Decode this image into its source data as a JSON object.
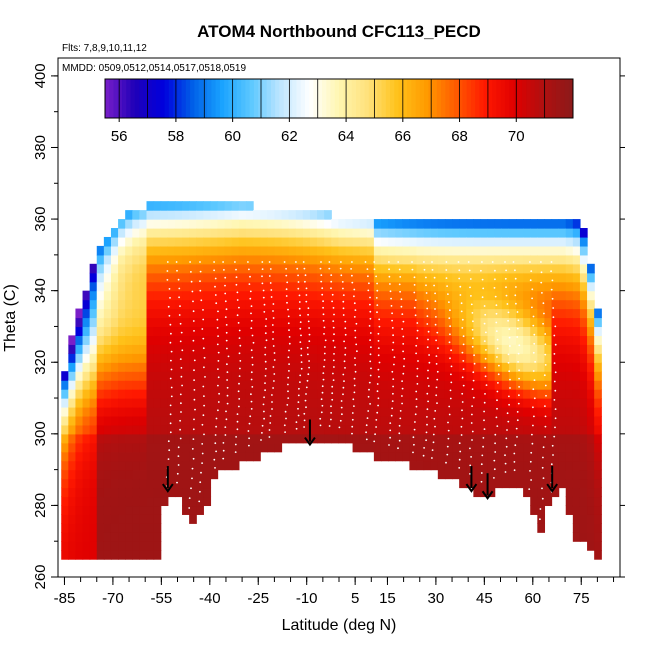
{
  "chart_data": {
    "type": "heatmap",
    "title": "ATOM4 Northbound CFC113_PECD",
    "flights_note": "Flts: 7,8,9,10,11,12",
    "dates_note": "MMDD: 0509,0512,0514,0517,0518,0519",
    "xlabel": "Latitude (deg N)",
    "ylabel": "Theta (C)",
    "xlim": [
      -87,
      87
    ],
    "ylim": [
      260,
      405
    ],
    "x_ticks": [
      -85,
      -70,
      -55,
      -40,
      -25,
      -10,
      5,
      15,
      30,
      45,
      60,
      75
    ],
    "y_ticks": [
      260,
      280,
      300,
      320,
      340,
      360,
      380,
      400
    ],
    "colorbar": {
      "min": 55.5,
      "max": 72,
      "ticks": [
        56,
        58,
        60,
        62,
        64,
        66,
        68,
        70
      ],
      "colors": [
        "#7a1fc8",
        "#2000b8",
        "#0000dd",
        "#0060e8",
        "#1aa3ff",
        "#5cc8ff",
        "#bfe6ff",
        "#ffffff",
        "#fff6b0",
        "#ffe17a",
        "#ffc21a",
        "#ff9a00",
        "#ff5a00",
        "#ff1800",
        "#e00000",
        "#b01010",
        "#8b1a1a"
      ]
    },
    "surface_floor": [
      [
        -85,
        264
      ],
      [
        -56,
        264
      ],
      [
        -56,
        278
      ],
      [
        -52,
        283
      ],
      [
        -49,
        282
      ],
      [
        -46,
        275
      ],
      [
        -42,
        278
      ],
      [
        -38,
        288
      ],
      [
        -30,
        292
      ],
      [
        -22,
        295
      ],
      [
        -15,
        297
      ],
      [
        -8,
        298.5
      ],
      [
        0,
        298
      ],
      [
        6,
        295
      ],
      [
        15,
        293
      ],
      [
        22,
        291
      ],
      [
        30,
        289
      ],
      [
        36,
        287
      ],
      [
        40,
        285
      ],
      [
        45,
        282
      ],
      [
        50,
        285
      ],
      [
        54,
        286
      ],
      [
        58,
        283
      ],
      [
        61,
        276
      ],
      [
        62,
        270
      ],
      [
        64,
        279
      ],
      [
        66,
        280
      ],
      [
        68,
        286
      ],
      [
        71,
        280
      ],
      [
        72,
        268
      ],
      [
        74,
        272
      ],
      [
        76,
        269
      ],
      [
        79,
        266
      ],
      [
        81,
        264
      ]
    ],
    "tropopause_top": [
      [
        -85,
        318
      ],
      [
        -80,
        336
      ],
      [
        -74,
        352
      ],
      [
        -67,
        361
      ],
      [
        -63,
        363
      ],
      [
        -59,
        364
      ],
      [
        -50,
        364
      ],
      [
        -30,
        364
      ],
      [
        -20,
        363
      ],
      [
        -10,
        362
      ],
      [
        0,
        361
      ],
      [
        10,
        361
      ],
      [
        20,
        361
      ],
      [
        30,
        361
      ],
      [
        40,
        361
      ],
      [
        50,
        361
      ],
      [
        60,
        361
      ],
      [
        70,
        361
      ],
      [
        74,
        360
      ],
      [
        76,
        356
      ],
      [
        78,
        348
      ],
      [
        80,
        338
      ],
      [
        81,
        320
      ],
      [
        81,
        264
      ]
    ],
    "arrow_latitudes": [
      -53,
      -9,
      41,
      46,
      66
    ],
    "arrow_tip_theta": [
      284,
      297,
      284,
      282,
      284
    ]
  }
}
